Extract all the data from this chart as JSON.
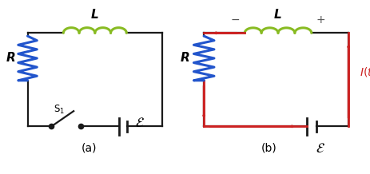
{
  "fig_width": 4.64,
  "fig_height": 2.18,
  "dpi": 100,
  "bg_color": "#ffffff",
  "circuit_color": "#1a1a1a",
  "resistor_color": "#2255cc",
  "inductor_color": "#88bb22",
  "arrow_color": "#cc2222",
  "label_a": "(a)",
  "label_b": "(b)",
  "label_L": "L",
  "label_R": "R",
  "label_eps": "$\\mathcal{E}$",
  "label_S1": "S$_1$",
  "label_It": "$I(t)$",
  "label_plus": "+",
  "label_minus": "−",
  "lw": 1.6
}
